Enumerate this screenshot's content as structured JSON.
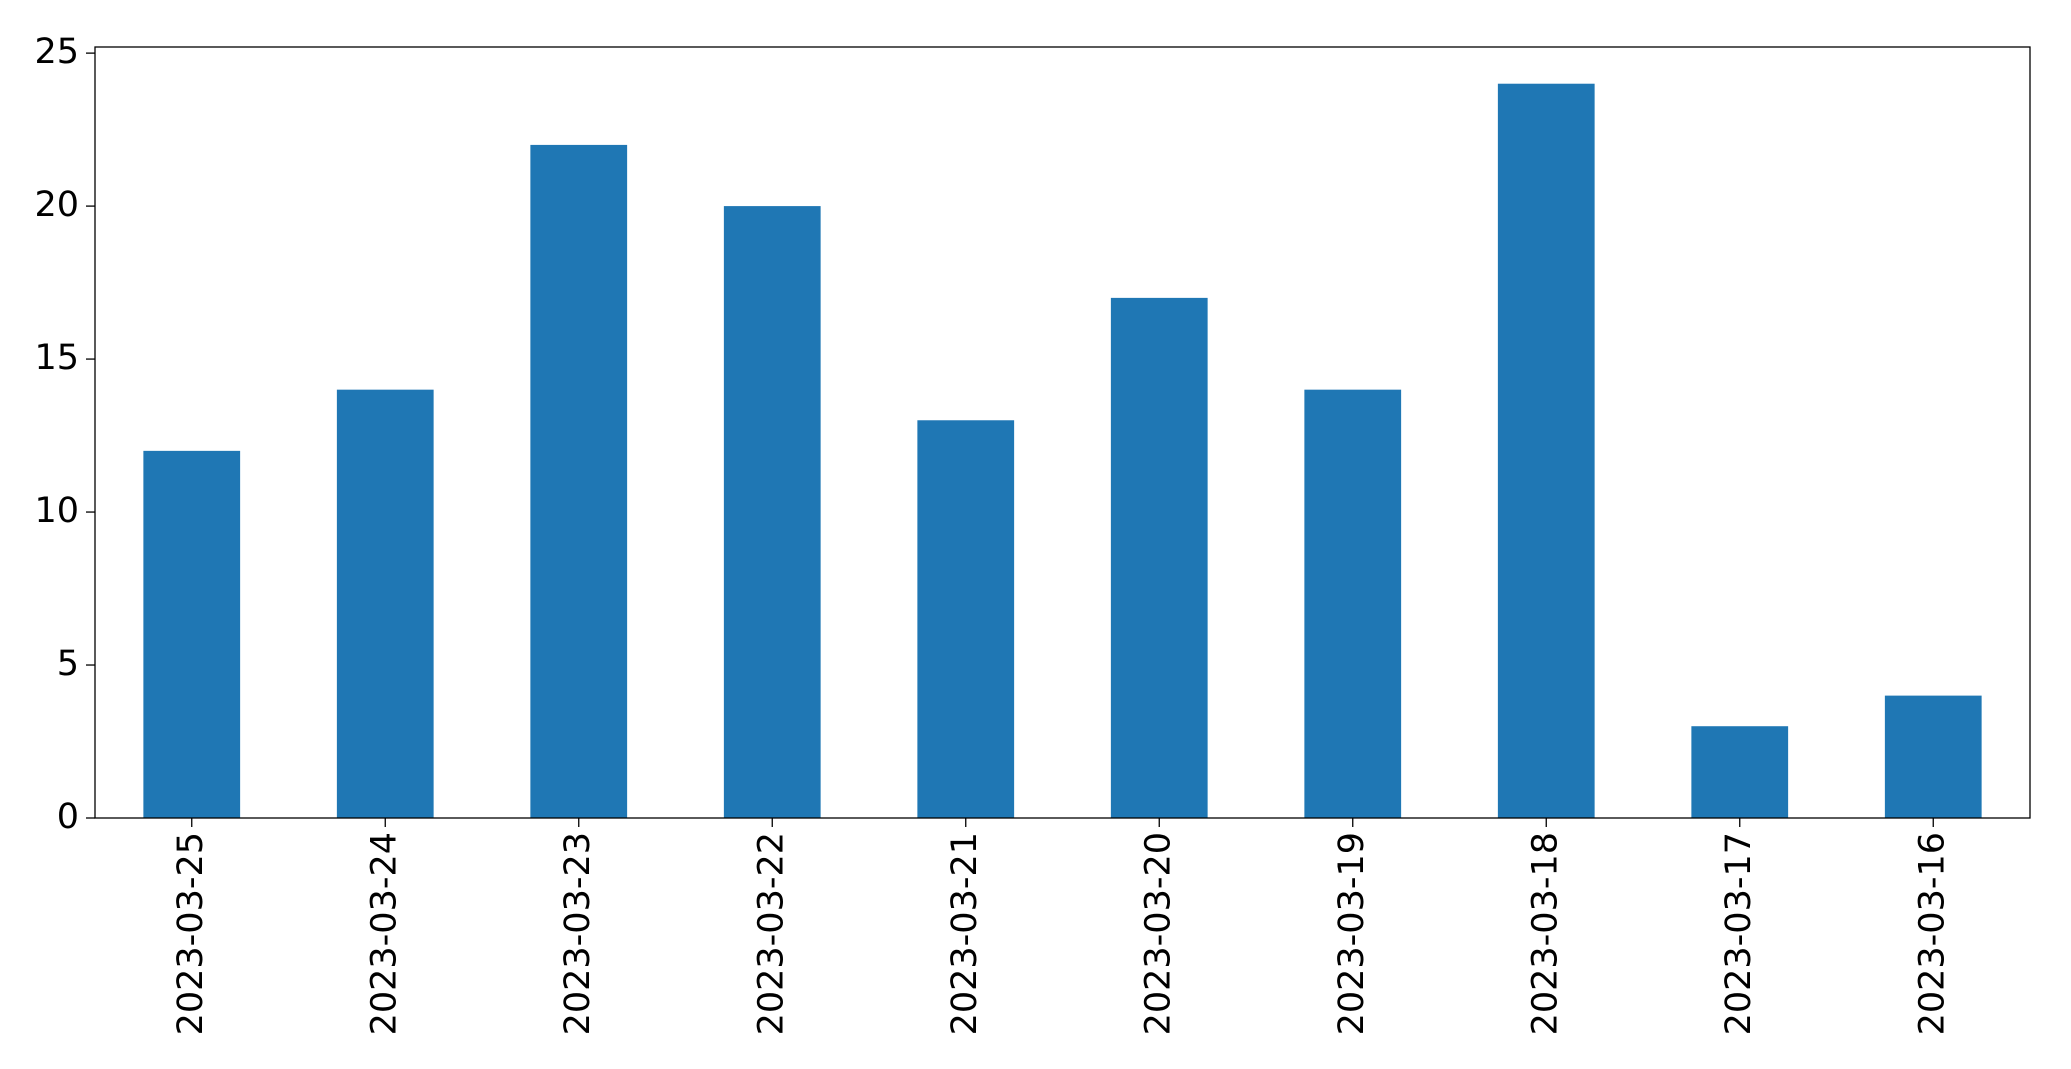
{
  "chart_data": {
    "type": "bar",
    "categories": [
      "2023-03-25",
      "2023-03-24",
      "2023-03-23",
      "2023-03-22",
      "2023-03-21",
      "2023-03-20",
      "2023-03-19",
      "2023-03-18",
      "2023-03-17",
      "2023-03-16"
    ],
    "values": [
      12,
      14,
      22,
      20,
      13,
      17,
      14,
      24,
      3,
      4
    ],
    "color": "#1f77b4",
    "ylim": [
      0,
      25.2
    ],
    "yticks": [
      0,
      5,
      10,
      15,
      20,
      25
    ],
    "grid": false
  }
}
